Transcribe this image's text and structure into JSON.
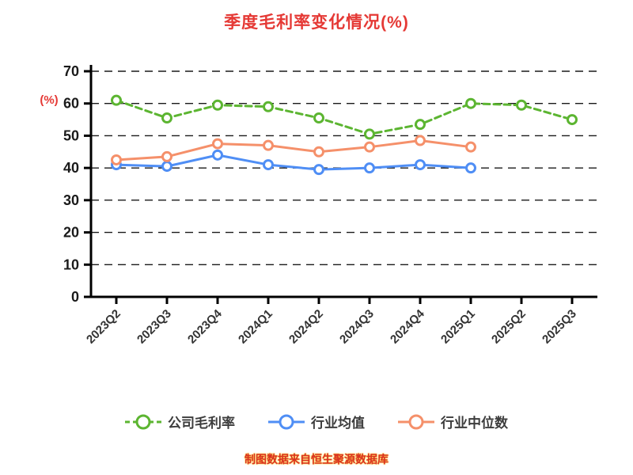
{
  "title": "季度毛利率变化情况(%)",
  "footer": "制图数据来自恒生聚源数据库",
  "colors": {
    "title": "#e53935",
    "footer": "#d93025",
    "axis": "#000000",
    "grid": "#1a1a1a",
    "tick_label": "#1a1a1a",
    "x_label": "#333333",
    "company": "#5cb531",
    "industry_avg": "#4f8ef5",
    "industry_median": "#f5906a"
  },
  "chart_data": {
    "type": "line",
    "title": "季度毛利率变化情况(%)",
    "xlabel": "",
    "ylabel": "(%)",
    "ylim": [
      0,
      70
    ],
    "yticks": [
      0,
      10,
      20,
      30,
      40,
      50,
      60,
      70
    ],
    "grid": "dashed-horizontal",
    "legend_position": "bottom",
    "categories": [
      "2023Q2",
      "2023Q3",
      "2023Q4",
      "2024Q1",
      "2024Q2",
      "2024Q3",
      "2024Q4",
      "2025Q1",
      "2025Q2",
      "2025Q3"
    ],
    "series": [
      {
        "name": "公司毛利率",
        "color": "#5cb531",
        "dash": "dashed",
        "values": [
          61,
          55.5,
          59.5,
          59,
          55.5,
          50.5,
          53.5,
          60,
          59.5,
          55
        ]
      },
      {
        "name": "行业均值",
        "color": "#4f8ef5",
        "dash": "solid",
        "values": [
          41,
          40.5,
          44,
          41,
          39.5,
          40,
          41,
          40,
          null,
          null
        ]
      },
      {
        "name": "行业中位数",
        "color": "#f5906a",
        "dash": "solid",
        "values": [
          42.5,
          43.5,
          47.5,
          47,
          45,
          46.5,
          48.5,
          46.5,
          null,
          null
        ]
      }
    ]
  }
}
